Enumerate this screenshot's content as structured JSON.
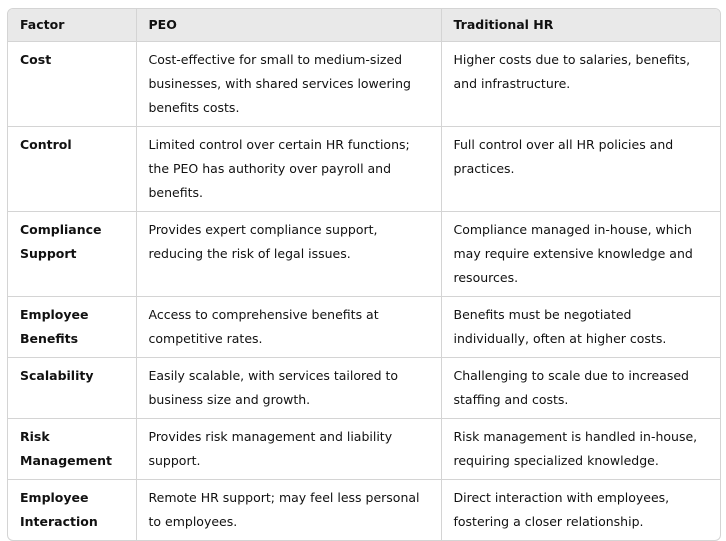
{
  "headers": [
    "Factor",
    "PEO",
    "Traditional HR"
  ],
  "rows": [
    [
      "Cost",
      "Cost-effective for small to medium-sized businesses, with shared services lowering benefits costs.",
      "Higher costs due to salaries, benefits, and infrastructure."
    ],
    [
      "Control",
      "Limited control over certain HR functions; the PEO has authority over payroll and benefits.",
      "Full control over all HR policies and practices."
    ],
    [
      "Compliance Support",
      "Provides expert compliance support, reducing the risk of legal issues.",
      "Compliance managed in-house, which may require extensive knowledge and resources."
    ],
    [
      "Employee Benefits",
      "Access to comprehensive benefits at competitive rates.",
      "Benefits must be negotiated individually, often at higher costs."
    ],
    [
      "Scalability",
      "Easily scalable, with services tailored to business size and growth.",
      "Challenging to scale due to increased staffing and costs."
    ],
    [
      "Risk Management",
      "Provides risk management and liability support.",
      "Risk management is handled in-house, requiring specialized knowledge."
    ],
    [
      "Employee Interaction",
      "Remote HR support; may feel less personal to employees.",
      "Direct interaction with employees, fostering a closer relationship."
    ]
  ]
}
